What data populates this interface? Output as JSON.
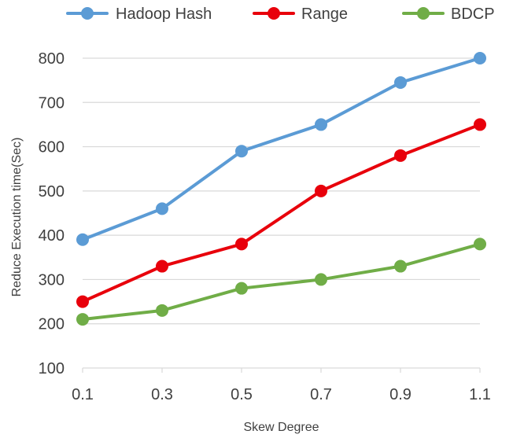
{
  "chart_data": {
    "type": "line",
    "xlabel": "Skew Degree",
    "ylabel": "Reduce  Execution time(Sec)",
    "x": [
      0.1,
      0.3,
      0.5,
      0.7,
      0.9,
      1.1
    ],
    "x_tick_labels": [
      "0.1",
      "0.3",
      "0.5",
      "0.7",
      "0.9",
      "1.1"
    ],
    "ylim": [
      100,
      800
    ],
    "y_ticks": [
      100,
      200,
      300,
      400,
      500,
      600,
      700,
      800
    ],
    "y_tick_labels": [
      "100",
      "200",
      "300",
      "400",
      "500",
      "600",
      "700",
      "800"
    ],
    "grid": "horizontal",
    "legend_position": "top",
    "series": [
      {
        "name": "Hadoop Hash",
        "color": "#5b9bd5",
        "values": [
          390,
          460,
          590,
          650,
          745,
          800
        ]
      },
      {
        "name": "Range",
        "color": "#e8000b",
        "values": [
          250,
          330,
          380,
          500,
          580,
          650
        ]
      },
      {
        "name": "BDCP",
        "color": "#70ad47",
        "values": [
          210,
          230,
          280,
          300,
          330,
          380
        ]
      }
    ]
  }
}
